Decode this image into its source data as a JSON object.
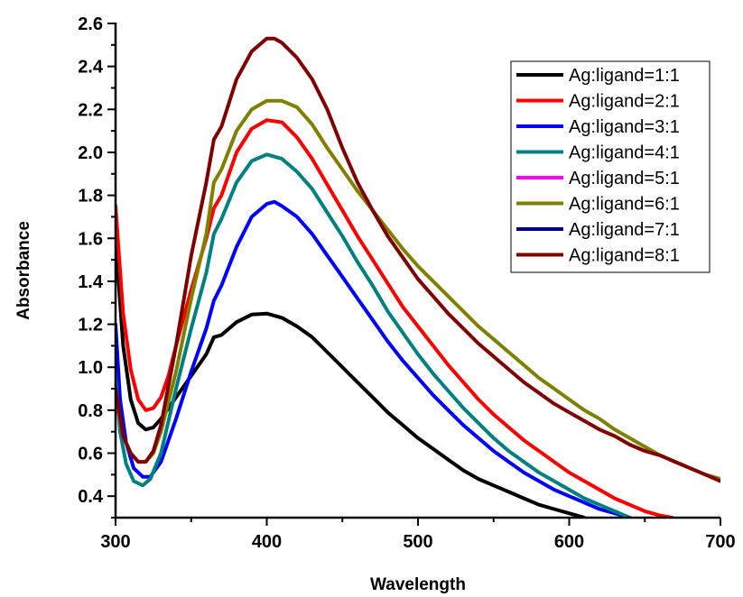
{
  "chart_data": {
    "type": "line",
    "xlabel": "Wavelength",
    "ylabel": "Absorbance",
    "xlim": [
      300,
      700
    ],
    "ylim": [
      0.3,
      2.6
    ],
    "xticks": [
      "300",
      "400",
      "500",
      "600",
      "700"
    ],
    "yticks": [
      "0.4",
      "0.6",
      "0.8",
      "1.0",
      "1.2",
      "1.4",
      "1.6",
      "1.8",
      "2.0",
      "2.2",
      "2.4",
      "2.6"
    ],
    "grid": false,
    "legend_position": "top-right",
    "series": [
      {
        "name": "Ag:ligand=1:1",
        "color": "#000000",
        "points": [
          [
            300,
            1.6
          ],
          [
            305,
            1.1
          ],
          [
            310,
            0.85
          ],
          [
            315,
            0.74
          ],
          [
            320,
            0.71
          ],
          [
            325,
            0.72
          ],
          [
            330,
            0.76
          ],
          [
            340,
            0.86
          ],
          [
            350,
            0.96
          ],
          [
            360,
            1.06
          ],
          [
            365,
            1.14
          ],
          [
            370,
            1.15
          ],
          [
            380,
            1.21
          ],
          [
            390,
            1.245
          ],
          [
            400,
            1.25
          ],
          [
            410,
            1.23
          ],
          [
            420,
            1.19
          ],
          [
            430,
            1.14
          ],
          [
            440,
            1.07
          ],
          [
            450,
            1.0
          ],
          [
            460,
            0.93
          ],
          [
            470,
            0.86
          ],
          [
            480,
            0.79
          ],
          [
            490,
            0.73
          ],
          [
            500,
            0.67
          ],
          [
            510,
            0.62
          ],
          [
            520,
            0.57
          ],
          [
            530,
            0.52
          ],
          [
            540,
            0.48
          ],
          [
            550,
            0.45
          ],
          [
            560,
            0.42
          ],
          [
            570,
            0.39
          ],
          [
            580,
            0.36
          ],
          [
            590,
            0.34
          ],
          [
            600,
            0.32
          ],
          [
            610,
            0.3
          ]
        ]
      },
      {
        "name": "Ag:ligand=2:1",
        "color": "#ff0000",
        "points": [
          [
            300,
            1.75
          ],
          [
            305,
            1.25
          ],
          [
            310,
            0.99
          ],
          [
            315,
            0.85
          ],
          [
            320,
            0.8
          ],
          [
            325,
            0.81
          ],
          [
            330,
            0.86
          ],
          [
            335,
            0.96
          ],
          [
            340,
            1.1
          ],
          [
            350,
            1.36
          ],
          [
            360,
            1.6
          ],
          [
            365,
            1.74
          ],
          [
            370,
            1.8
          ],
          [
            380,
            2.0
          ],
          [
            390,
            2.11
          ],
          [
            400,
            2.15
          ],
          [
            410,
            2.14
          ],
          [
            420,
            2.07
          ],
          [
            430,
            1.97
          ],
          [
            440,
            1.85
          ],
          [
            450,
            1.73
          ],
          [
            460,
            1.61
          ],
          [
            470,
            1.5
          ],
          [
            480,
            1.39
          ],
          [
            490,
            1.28
          ],
          [
            500,
            1.19
          ],
          [
            510,
            1.1
          ],
          [
            520,
            1.01
          ],
          [
            530,
            0.93
          ],
          [
            540,
            0.85
          ],
          [
            550,
            0.78
          ],
          [
            560,
            0.72
          ],
          [
            570,
            0.66
          ],
          [
            580,
            0.61
          ],
          [
            590,
            0.56
          ],
          [
            600,
            0.51
          ],
          [
            610,
            0.47
          ],
          [
            620,
            0.43
          ],
          [
            630,
            0.39
          ],
          [
            640,
            0.36
          ],
          [
            650,
            0.33
          ],
          [
            660,
            0.31
          ],
          [
            668,
            0.3
          ]
        ]
      },
      {
        "name": "Ag:ligand=3:1",
        "color": "#0000ff",
        "points": [
          [
            300,
            1.2
          ],
          [
            303,
            0.85
          ],
          [
            307,
            0.65
          ],
          [
            312,
            0.53
          ],
          [
            318,
            0.49
          ],
          [
            323,
            0.49
          ],
          [
            330,
            0.56
          ],
          [
            340,
            0.76
          ],
          [
            350,
            0.98
          ],
          [
            360,
            1.18
          ],
          [
            365,
            1.31
          ],
          [
            370,
            1.38
          ],
          [
            380,
            1.56
          ],
          [
            390,
            1.7
          ],
          [
            400,
            1.76
          ],
          [
            405,
            1.77
          ],
          [
            410,
            1.75
          ],
          [
            420,
            1.7
          ],
          [
            430,
            1.62
          ],
          [
            440,
            1.52
          ],
          [
            450,
            1.42
          ],
          [
            460,
            1.32
          ],
          [
            470,
            1.22
          ],
          [
            480,
            1.12
          ],
          [
            490,
            1.03
          ],
          [
            500,
            0.95
          ],
          [
            510,
            0.87
          ],
          [
            520,
            0.8
          ],
          [
            530,
            0.73
          ],
          [
            540,
            0.67
          ],
          [
            550,
            0.61
          ],
          [
            560,
            0.56
          ],
          [
            570,
            0.51
          ],
          [
            580,
            0.47
          ],
          [
            590,
            0.43
          ],
          [
            600,
            0.4
          ],
          [
            610,
            0.37
          ],
          [
            620,
            0.34
          ],
          [
            630,
            0.32
          ],
          [
            640,
            0.3
          ]
        ]
      },
      {
        "name": "Ag:ligand=4:1",
        "color": "#008080",
        "points": [
          [
            300,
            0.95
          ],
          [
            303,
            0.7
          ],
          [
            307,
            0.55
          ],
          [
            312,
            0.47
          ],
          [
            318,
            0.45
          ],
          [
            323,
            0.48
          ],
          [
            330,
            0.6
          ],
          [
            340,
            0.9
          ],
          [
            350,
            1.18
          ],
          [
            360,
            1.44
          ],
          [
            365,
            1.62
          ],
          [
            370,
            1.69
          ],
          [
            380,
            1.86
          ],
          [
            390,
            1.96
          ],
          [
            400,
            1.99
          ],
          [
            410,
            1.97
          ],
          [
            420,
            1.91
          ],
          [
            430,
            1.83
          ],
          [
            440,
            1.72
          ],
          [
            450,
            1.61
          ],
          [
            460,
            1.49
          ],
          [
            470,
            1.38
          ],
          [
            480,
            1.26
          ],
          [
            490,
            1.16
          ],
          [
            500,
            1.06
          ],
          [
            510,
            0.97
          ],
          [
            520,
            0.89
          ],
          [
            530,
            0.81
          ],
          [
            540,
            0.74
          ],
          [
            550,
            0.67
          ],
          [
            560,
            0.61
          ],
          [
            570,
            0.56
          ],
          [
            580,
            0.51
          ],
          [
            590,
            0.47
          ],
          [
            600,
            0.43
          ],
          [
            610,
            0.39
          ],
          [
            620,
            0.36
          ],
          [
            630,
            0.33
          ],
          [
            640,
            0.3
          ]
        ]
      },
      {
        "name": "Ag:ligand=5:1",
        "color": "#ff00ff",
        "points": []
      },
      {
        "name": "Ag:ligand=6:1",
        "color": "#808000",
        "points": [
          [
            300,
            0.85
          ],
          [
            305,
            0.68
          ],
          [
            310,
            0.6
          ],
          [
            315,
            0.56
          ],
          [
            320,
            0.56
          ],
          [
            325,
            0.6
          ],
          [
            330,
            0.7
          ],
          [
            340,
            0.98
          ],
          [
            350,
            1.32
          ],
          [
            360,
            1.62
          ],
          [
            365,
            1.86
          ],
          [
            370,
            1.92
          ],
          [
            380,
            2.1
          ],
          [
            390,
            2.2
          ],
          [
            400,
            2.24
          ],
          [
            410,
            2.24
          ],
          [
            420,
            2.21
          ],
          [
            430,
            2.13
          ],
          [
            440,
            2.02
          ],
          [
            450,
            1.92
          ],
          [
            460,
            1.82
          ],
          [
            470,
            1.73
          ],
          [
            480,
            1.64
          ],
          [
            490,
            1.55
          ],
          [
            500,
            1.47
          ],
          [
            510,
            1.4
          ],
          [
            520,
            1.33
          ],
          [
            530,
            1.26
          ],
          [
            540,
            1.19
          ],
          [
            550,
            1.13
          ],
          [
            560,
            1.07
          ],
          [
            570,
            1.01
          ],
          [
            580,
            0.95
          ],
          [
            590,
            0.9
          ],
          [
            600,
            0.85
          ],
          [
            610,
            0.8
          ],
          [
            620,
            0.76
          ],
          [
            630,
            0.71
          ],
          [
            640,
            0.67
          ],
          [
            650,
            0.63
          ],
          [
            660,
            0.59
          ],
          [
            670,
            0.56
          ],
          [
            680,
            0.53
          ],
          [
            690,
            0.5
          ],
          [
            700,
            0.48
          ]
        ]
      },
      {
        "name": "Ag:ligand=7:1",
        "color": "#000080",
        "points": []
      },
      {
        "name": "Ag:ligand=8:1",
        "color": "#800000",
        "points": [
          [
            300,
            0.9
          ],
          [
            305,
            0.68
          ],
          [
            310,
            0.6
          ],
          [
            315,
            0.56
          ],
          [
            320,
            0.56
          ],
          [
            325,
            0.61
          ],
          [
            330,
            0.73
          ],
          [
            340,
            1.1
          ],
          [
            350,
            1.52
          ],
          [
            360,
            1.86
          ],
          [
            365,
            2.06
          ],
          [
            370,
            2.12
          ],
          [
            380,
            2.34
          ],
          [
            390,
            2.47
          ],
          [
            400,
            2.53
          ],
          [
            405,
            2.53
          ],
          [
            410,
            2.51
          ],
          [
            420,
            2.44
          ],
          [
            430,
            2.34
          ],
          [
            440,
            2.2
          ],
          [
            450,
            2.02
          ],
          [
            460,
            1.86
          ],
          [
            470,
            1.73
          ],
          [
            480,
            1.61
          ],
          [
            490,
            1.51
          ],
          [
            500,
            1.41
          ],
          [
            510,
            1.33
          ],
          [
            520,
            1.25
          ],
          [
            530,
            1.18
          ],
          [
            540,
            1.11
          ],
          [
            550,
            1.05
          ],
          [
            560,
            0.99
          ],
          [
            570,
            0.93
          ],
          [
            580,
            0.88
          ],
          [
            590,
            0.83
          ],
          [
            600,
            0.79
          ],
          [
            610,
            0.75
          ],
          [
            620,
            0.71
          ],
          [
            630,
            0.68
          ],
          [
            640,
            0.64
          ],
          [
            650,
            0.61
          ],
          [
            660,
            0.59
          ],
          [
            670,
            0.56
          ],
          [
            680,
            0.53
          ],
          [
            690,
            0.5
          ],
          [
            700,
            0.47
          ]
        ]
      }
    ]
  }
}
